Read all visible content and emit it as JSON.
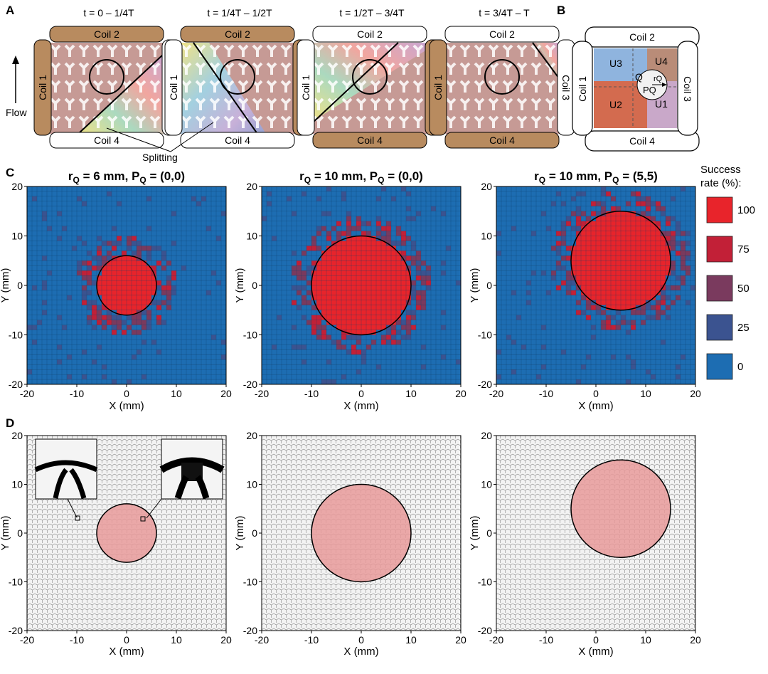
{
  "panels": {
    "A": {
      "letter": "A",
      "flow_label": "Flow",
      "splitting_label": "Splitting",
      "subpanels": [
        {
          "time": "t = 0 – 1/4T",
          "active": [
            "Coil 1",
            "Coil 2"
          ]
        },
        {
          "time": "t = 1/4T – 1/2T",
          "active": [
            "Coil 2",
            "Coil 3"
          ]
        },
        {
          "time": "t = 1/2T – 3/4T",
          "active": [
            "Coil 3",
            "Coil 4"
          ]
        },
        {
          "time": "t = 3/4T – T",
          "active": [
            "Coil 1",
            "Coil 4"
          ]
        }
      ],
      "coils": {
        "c1": "Coil 1",
        "c2": "Coil 2",
        "c3": "Coil 3",
        "c4": "Coil 4"
      }
    },
    "B": {
      "letter": "B",
      "regions": {
        "u1": "U1",
        "u2": "U2",
        "u3": "U3",
        "u4": "U4"
      },
      "q": "Q",
      "rq": "rQ",
      "pq": "PQ",
      "region_colors": {
        "u1": "#c9a8c9",
        "u2": "#d36b4f",
        "u3": "#8fb4de",
        "u4": "#b98c78"
      }
    },
    "C": {
      "letter": "C",
      "xlabel": "X (mm)",
      "ylabel": "Y (mm)",
      "ticks": [
        "-20",
        "-10",
        "0",
        "10",
        "20"
      ],
      "titles": [
        {
          "r": "r",
          "sub": "Q",
          "rest": " = 6 mm, P",
          "sub2": "Q",
          "rest2": " = (0,0)"
        },
        {
          "r": "r",
          "sub": "Q",
          "rest": " = 10 mm, P",
          "sub2": "Q",
          "rest2": " = (0,0)"
        },
        {
          "r": "r",
          "sub": "Q",
          "rest": " = 10 mm, P",
          "sub2": "Q",
          "rest2": " = (5,5)"
        }
      ]
    },
    "D": {
      "letter": "D",
      "xlabel": "X (mm)",
      "ylabel": "Y (mm)",
      "ticks": [
        "-20",
        "-10",
        "0",
        "10",
        "20"
      ]
    }
  },
  "legend": {
    "title_line1": "Success",
    "title_line2": "rate (%):",
    "items": [
      {
        "label": "100",
        "color": "#e8242b"
      },
      {
        "label": "75",
        "color": "#c22037"
      },
      {
        "label": "50",
        "color": "#7a3a5e"
      },
      {
        "label": "25",
        "color": "#3b5390"
      },
      {
        "label": "0",
        "color": "#1d6db2"
      }
    ]
  },
  "chart_data": [
    {
      "type": "heatmap",
      "title": "rQ = 6 mm, PQ = (0,0)",
      "xlabel": "X (mm)",
      "ylabel": "Y (mm)",
      "xlim": [
        -20,
        20
      ],
      "ylim": [
        -20,
        20
      ],
      "target_circle": {
        "cx": 0,
        "cy": 0,
        "r": 6
      },
      "inside_value": 100,
      "outside_value": 0
    },
    {
      "type": "heatmap",
      "title": "rQ = 10 mm, PQ = (0,0)",
      "xlabel": "X (mm)",
      "ylabel": "Y (mm)",
      "xlim": [
        -20,
        20
      ],
      "ylim": [
        -20,
        20
      ],
      "target_circle": {
        "cx": 0,
        "cy": 0,
        "r": 10
      },
      "inside_value": 100,
      "outside_value": 0
    },
    {
      "type": "heatmap",
      "title": "rQ = 10 mm, PQ = (5,5)",
      "xlabel": "X (mm)",
      "ylabel": "Y (mm)",
      "xlim": [
        -20,
        20
      ],
      "ylim": [
        -20,
        20
      ],
      "target_circle": {
        "cx": 5,
        "cy": 5,
        "r": 10
      },
      "inside_value": 100,
      "outside_value": 0
    }
  ]
}
